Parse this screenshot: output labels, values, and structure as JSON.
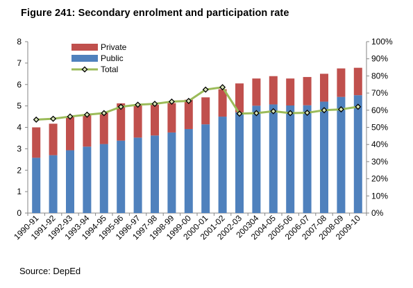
{
  "figure_title": "Figure 241: Secondary enrolment and participation rate",
  "source": "Source: DepEd",
  "colors": {
    "private": "#c0504d",
    "public": "#4f81bd",
    "total_line": "#9bbb59",
    "total_marker_fill": "#d7e4b7",
    "total_marker_edge": "#000000",
    "axis": "#868686",
    "grid": "#d9d9d9"
  },
  "chart_data": {
    "type": "bar",
    "stacked": true,
    "title": "Secondary enrolment and participation rate",
    "categories": [
      "1990-91",
      "1991-92",
      "1992-93",
      "1993-94",
      "1994-95",
      "1995-96",
      "1996-97",
      "1997-98",
      "1998-99",
      "1999-00",
      "2000-01",
      "2001-02",
      "2002-03",
      "200304",
      "2004-05",
      "2005-06",
      "2006-07",
      "2007-08",
      "2008-09",
      "2009-10"
    ],
    "series": [
      {
        "name": "Public",
        "axis": "left",
        "values": [
          2.58,
          2.7,
          2.93,
          3.1,
          3.22,
          3.38,
          3.52,
          3.62,
          3.76,
          3.92,
          4.14,
          4.5,
          4.7,
          5.01,
          5.07,
          5.02,
          5.03,
          5.2,
          5.42,
          5.5
        ]
      },
      {
        "name": "Private",
        "axis": "left",
        "values": [
          1.42,
          1.47,
          1.57,
          1.5,
          1.48,
          1.74,
          1.51,
          1.43,
          1.37,
          1.37,
          1.26,
          1.28,
          1.35,
          1.27,
          1.32,
          1.26,
          1.32,
          1.3,
          1.33,
          1.28
        ]
      },
      {
        "name": "Total",
        "type": "line",
        "axis": "right",
        "values": [
          54.5,
          55.0,
          56.3,
          57.4,
          58.3,
          62.0,
          63.2,
          63.7,
          65.0,
          65.4,
          72.0,
          73.4,
          58.0,
          58.3,
          59.4,
          58.3,
          58.5,
          60.0,
          60.5,
          62.0
        ]
      }
    ],
    "y_left": {
      "ylim": [
        0,
        8
      ],
      "ticks": [
        "0",
        "1",
        "2",
        "3",
        "4",
        "5",
        "6",
        "7",
        "8"
      ]
    },
    "y_right": {
      "ylim": [
        0,
        100
      ],
      "ticks": [
        "0%",
        "10%",
        "20%",
        "30%",
        "40%",
        "50%",
        "60%",
        "70%",
        "80%",
        "90%",
        "100%"
      ]
    },
    "legend": {
      "position": "top-left",
      "entries": [
        "Private",
        "Public",
        "Total"
      ]
    },
    "grid": false
  }
}
